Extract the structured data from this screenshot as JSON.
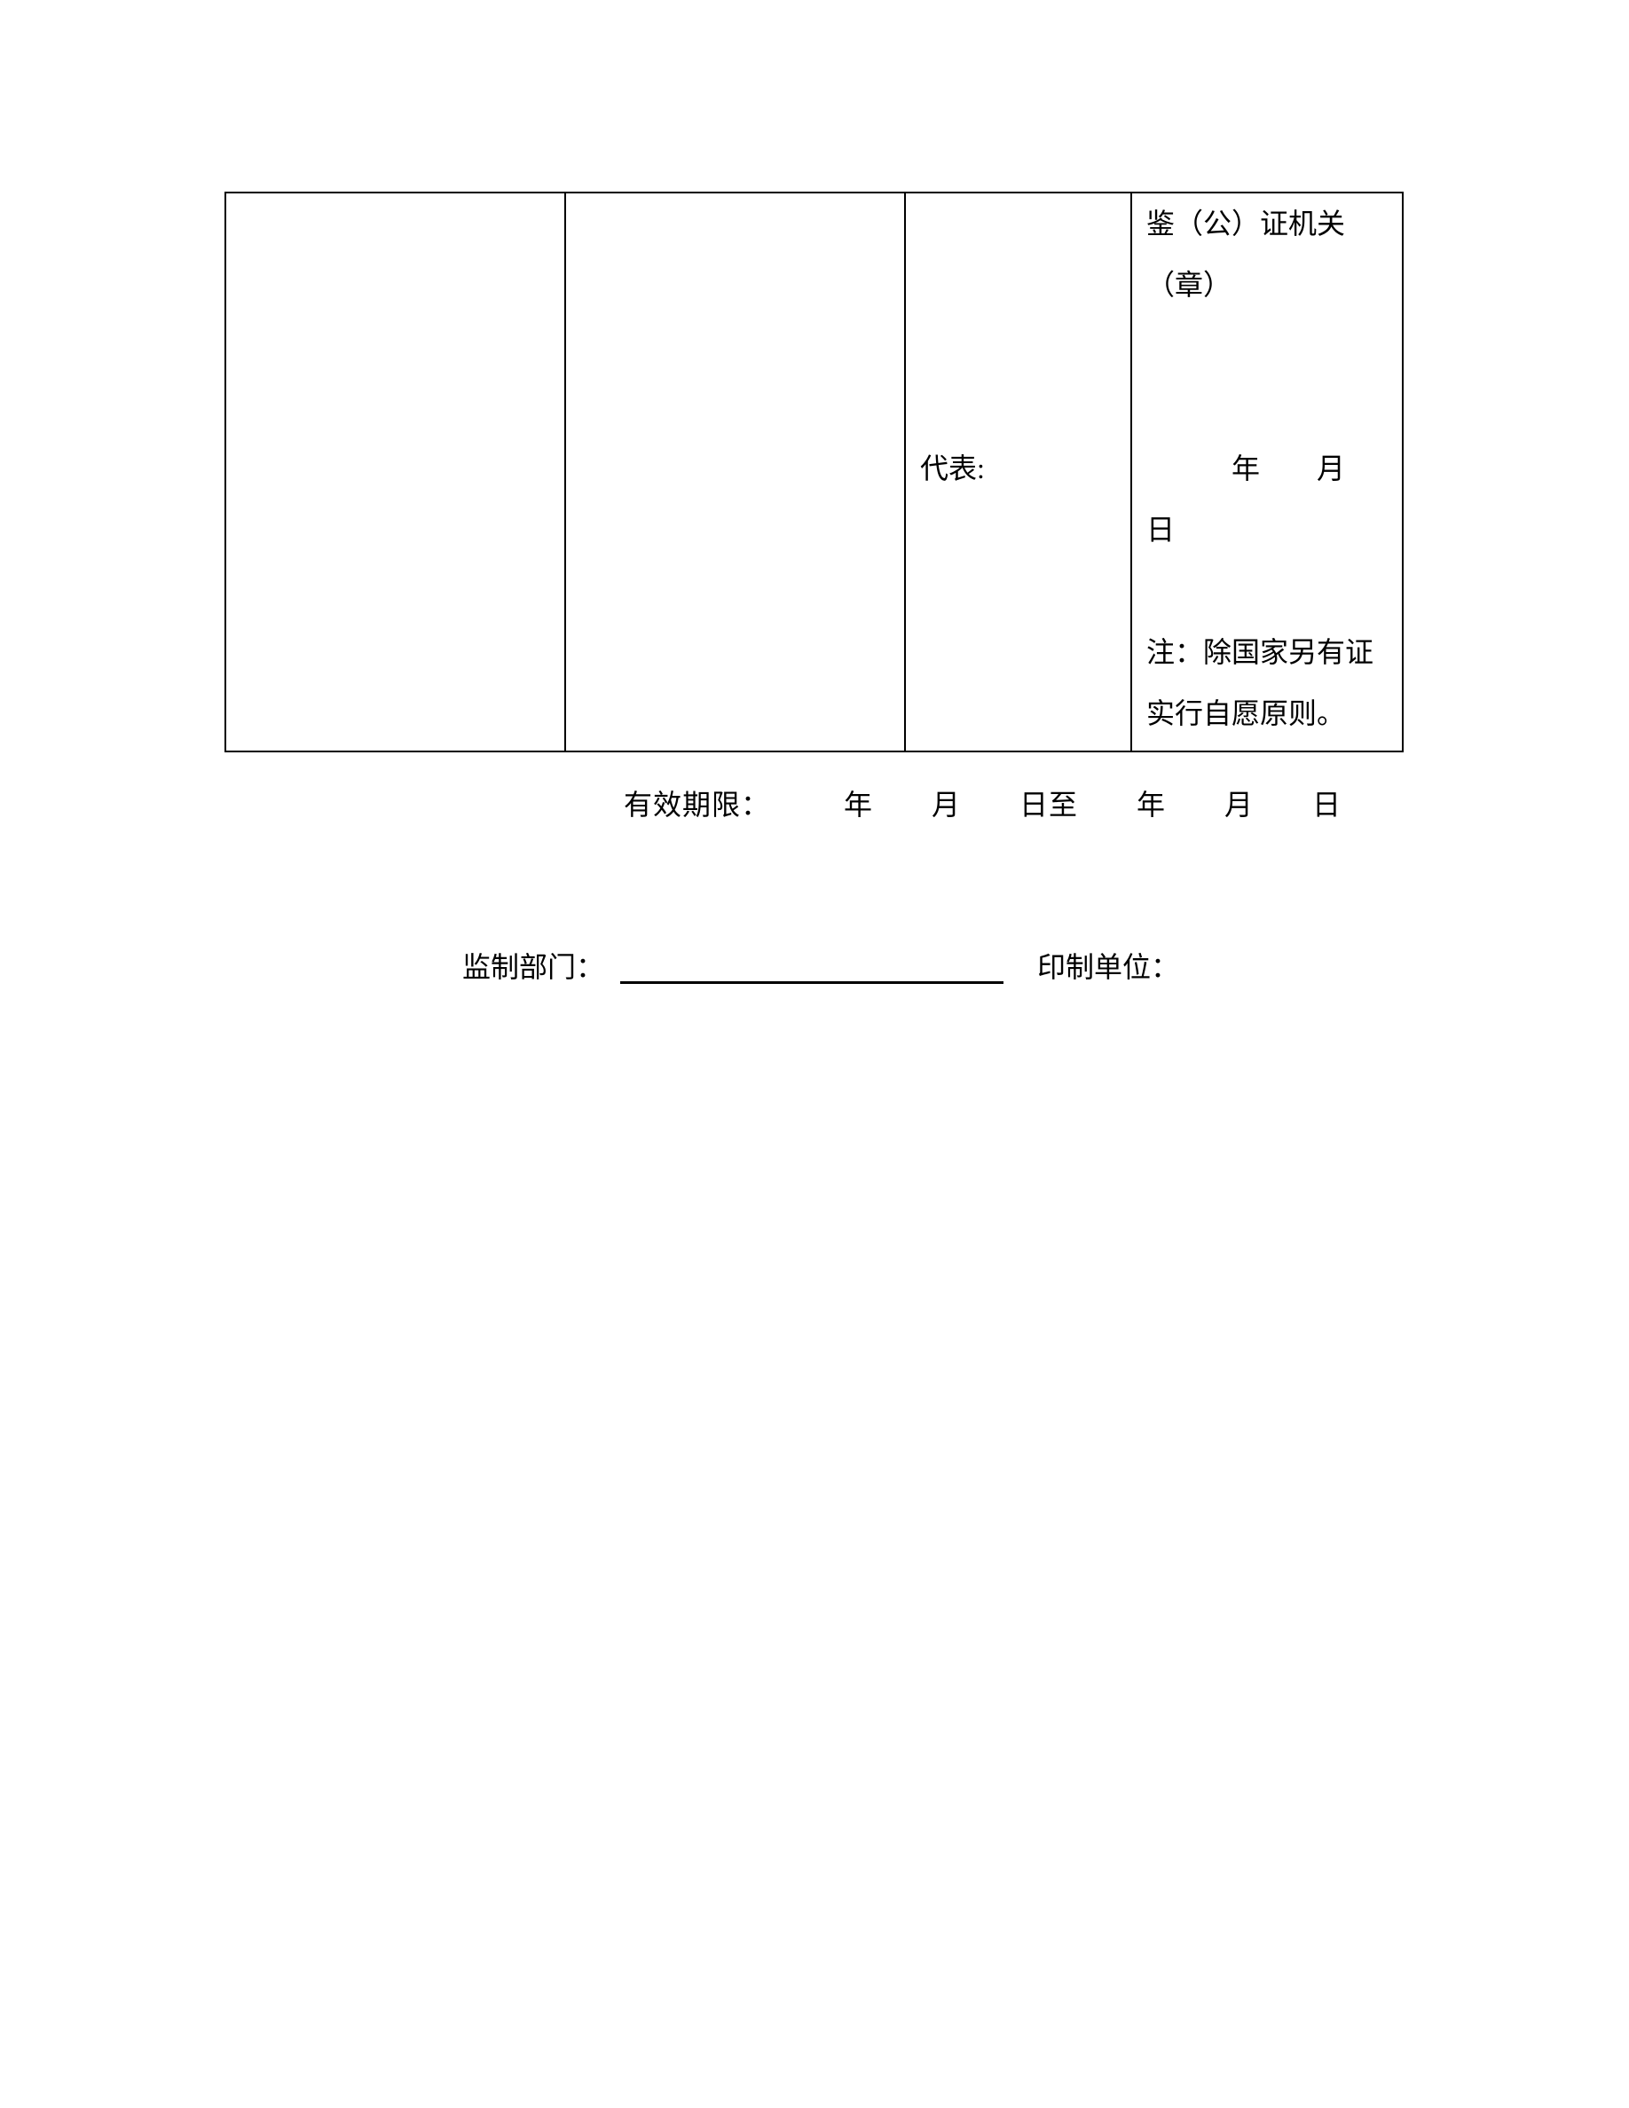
{
  "page": {
    "background": "#ffffff",
    "text_color": "#000000",
    "border_color": "#000000"
  },
  "table": {
    "col1": {
      "lines": [
        "",
        "",
        "",
        "",
        "",
        "",
        "",
        "",
        ""
      ]
    },
    "col2": {
      "lines": [
        "",
        "",
        "",
        "",
        "",
        "",
        "",
        "",
        ""
      ]
    },
    "col3": {
      "lines": [
        "",
        "",
        "",
        "",
        "代表:",
        "",
        "",
        "",
        ""
      ]
    },
    "col4": {
      "lines": [
        "鉴（公）证机关",
        "（章）",
        "",
        "",
        "　　　年　　月",
        "日",
        "",
        "注：除国家另有证",
        "实行自愿原则。"
      ]
    }
  },
  "footer": {
    "validity_line": "有效期限：　　　年　　月　　日至　　年　　月　　日",
    "supervisor_label": "监制部门：",
    "printer_label": "印制单位："
  }
}
